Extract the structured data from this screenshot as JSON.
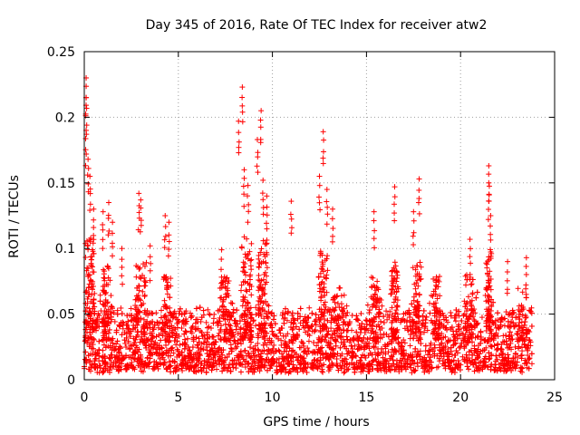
{
  "chart_data": {
    "type": "scatter",
    "title": "Day 345 of 2016, Rate Of TEC Index for receiver atw2",
    "xlabel": "GPS time / hours",
    "ylabel": "ROTI / TECUs",
    "xlim": [
      0,
      25
    ],
    "ylim": [
      0,
      0.25
    ],
    "xticks": [
      0,
      5,
      10,
      15,
      20,
      25
    ],
    "xtick_labels": [
      "0",
      "5",
      "10",
      "15",
      "20",
      "25"
    ],
    "yticks": [
      0,
      0.05,
      0.1,
      0.15,
      0.2,
      0.25
    ],
    "ytick_labels": [
      "0",
      "0.05",
      "0.1",
      "0.15",
      "0.2",
      "0.25"
    ],
    "grid": true,
    "marker": "+",
    "color": "#ff0000",
    "data_x_range_hours": [
      0,
      23.8
    ],
    "typical_band": [
      0.005,
      0.05
    ],
    "peaks": [
      {
        "x": 0.1,
        "y": 0.23
      },
      {
        "x": 0.1,
        "y": 0.215
      },
      {
        "x": 0.1,
        "y": 0.19
      },
      {
        "x": 0.2,
        "y": 0.168
      },
      {
        "x": 0.3,
        "y": 0.155
      },
      {
        "x": 0.5,
        "y": 0.13
      },
      {
        "x": 1.0,
        "y": 0.128
      },
      {
        "x": 1.3,
        "y": 0.135
      },
      {
        "x": 1.5,
        "y": 0.12
      },
      {
        "x": 2.0,
        "y": 0.1
      },
      {
        "x": 2.9,
        "y": 0.142
      },
      {
        "x": 3.0,
        "y": 0.137
      },
      {
        "x": 3.5,
        "y": 0.102
      },
      {
        "x": 4.3,
        "y": 0.125
      },
      {
        "x": 4.5,
        "y": 0.12
      },
      {
        "x": 7.3,
        "y": 0.099
      },
      {
        "x": 8.2,
        "y": 0.197
      },
      {
        "x": 8.4,
        "y": 0.223
      },
      {
        "x": 8.5,
        "y": 0.16
      },
      {
        "x": 8.7,
        "y": 0.148
      },
      {
        "x": 9.2,
        "y": 0.183
      },
      {
        "x": 9.4,
        "y": 0.205
      },
      {
        "x": 9.5,
        "y": 0.152
      },
      {
        "x": 9.7,
        "y": 0.14
      },
      {
        "x": 11.0,
        "y": 0.136
      },
      {
        "x": 12.5,
        "y": 0.155
      },
      {
        "x": 12.7,
        "y": 0.189
      },
      {
        "x": 12.9,
        "y": 0.145
      },
      {
        "x": 13.2,
        "y": 0.13
      },
      {
        "x": 15.4,
        "y": 0.128
      },
      {
        "x": 16.5,
        "y": 0.147
      },
      {
        "x": 17.8,
        "y": 0.153
      },
      {
        "x": 17.5,
        "y": 0.128
      },
      {
        "x": 20.5,
        "y": 0.107
      },
      {
        "x": 21.5,
        "y": 0.163
      },
      {
        "x": 21.5,
        "y": 0.15
      },
      {
        "x": 21.6,
        "y": 0.125
      },
      {
        "x": 22.5,
        "y": 0.09
      },
      {
        "x": 23.5,
        "y": 0.093
      }
    ],
    "active_windows": [
      {
        "center": 0.3,
        "width": 0.5,
        "amp": 0.08
      },
      {
        "center": 1.2,
        "width": 0.5,
        "amp": 0.06
      },
      {
        "center": 3.0,
        "width": 0.6,
        "amp": 0.06
      },
      {
        "center": 4.4,
        "width": 0.4,
        "amp": 0.05
      },
      {
        "center": 7.5,
        "width": 0.6,
        "amp": 0.05
      },
      {
        "center": 8.6,
        "width": 0.6,
        "amp": 0.08
      },
      {
        "center": 9.5,
        "width": 0.5,
        "amp": 0.08
      },
      {
        "center": 12.7,
        "width": 0.5,
        "amp": 0.07
      },
      {
        "center": 13.5,
        "width": 0.8,
        "amp": 0.04
      },
      {
        "center": 15.5,
        "width": 0.5,
        "amp": 0.05
      },
      {
        "center": 16.5,
        "width": 0.4,
        "amp": 0.06
      },
      {
        "center": 17.7,
        "width": 0.5,
        "amp": 0.06
      },
      {
        "center": 18.7,
        "width": 0.4,
        "amp": 0.05
      },
      {
        "center": 20.5,
        "width": 0.6,
        "amp": 0.05
      },
      {
        "center": 21.5,
        "width": 0.3,
        "amp": 0.07
      },
      {
        "center": 23.3,
        "width": 0.5,
        "amp": 0.04
      }
    ]
  }
}
